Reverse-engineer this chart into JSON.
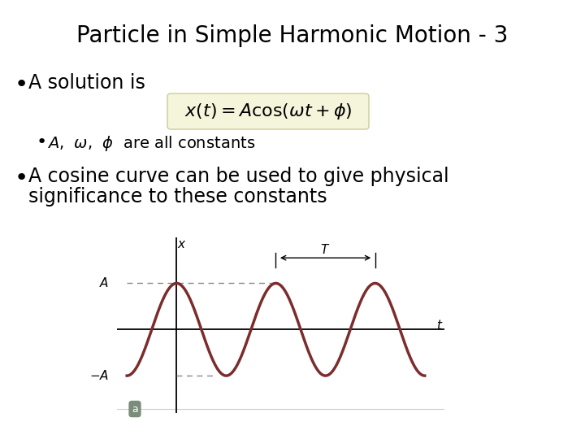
{
  "title": "Particle in Simple Harmonic Motion - 3",
  "title_fontsize": 20,
  "background_color": "#ffffff",
  "text_color": "#000000",
  "bullet1_text": "A solution is",
  "bullet1_fontsize": 17,
  "equation_text": "$x(t) = A \\cos (\\omega t + \\phi)$",
  "equation_fontsize": 16,
  "equation_box_color": "#f5f5dc",
  "equation_box_edge": "#cccc99",
  "subbullet_text": "$A$,  $\\omega$,  $\\phi$  are all constants",
  "subbullet_fontsize": 14,
  "bullet2_line1": "A cosine curve can be used to give physical",
  "bullet2_line2": "significance to these constants",
  "bullet2_fontsize": 17,
  "curve_color": "#7B2D2D",
  "curve_linewidth": 2.5,
  "axis_color": "#000000",
  "dashed_color": "#888888",
  "label_box_color": "#7a8c7a"
}
